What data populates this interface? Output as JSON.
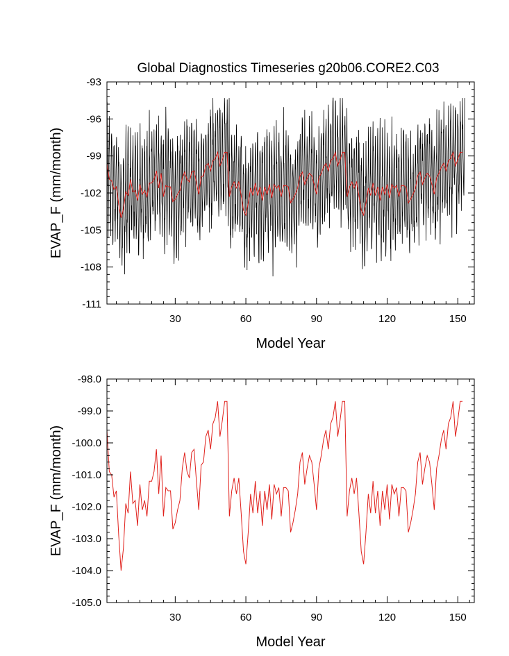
{
  "chart_data": [
    {
      "type": "line",
      "title": "Global Diagnostics Timeseries g20b06.CORE2.C03",
      "xlabel": "Model Year",
      "ylabel": "EVAP_F (mm/month)",
      "xlim": [
        1,
        157
      ],
      "ylim": [
        -111,
        -93
      ],
      "xticks": [
        30,
        60,
        90,
        120,
        150
      ],
      "yticks": [
        -111,
        -108,
        -105,
        -102,
        -99,
        -96,
        -93
      ],
      "ytick_labels": [
        "-111",
        "-108",
        "-105",
        "-102",
        "-99",
        "-96",
        "-93"
      ],
      "grid": false,
      "series": [
        {
          "kind": "monthly",
          "color": "#000000",
          "note_desc": "monthly values oscillating around the annual mean with seasonal amplitude ~3-5 mm/month",
          "extremes": {
            "min": -109,
            "max": -94.3
          }
        },
        {
          "kind": "annual",
          "color": "#e0201b",
          "ref": "annual_mean"
        }
      ]
    },
    {
      "type": "line",
      "title": "",
      "xlabel": "Model Year",
      "ylabel": "EVAP_F (mm/month)",
      "xlim": [
        1,
        157
      ],
      "ylim": [
        -105,
        -98
      ],
      "xticks": [
        30,
        60,
        90,
        120,
        150
      ],
      "yticks": [
        -105,
        -104,
        -103,
        -102,
        -101,
        -100,
        -99,
        -98
      ],
      "ytick_labels": [
        "-105.0",
        "-104.0",
        "-103.0",
        "-102.0",
        "-101.0",
        "-100.0",
        "-99.0",
        "-98.0"
      ],
      "grid": false,
      "series": [
        {
          "kind": "annual",
          "color": "#e0201b",
          "ref": "annual_mean"
        }
      ]
    }
  ],
  "annual_mean": {
    "x_start": 1,
    "values": [
      -99.6,
      -100.9,
      -101.0,
      -101.7,
      -101.5,
      -102.9,
      -104.0,
      -103.3,
      -101.9,
      -102.2,
      -100.9,
      -101.9,
      -101.8,
      -102.6,
      -101.3,
      -102.1,
      -101.8,
      -102.3,
      -101.2,
      -101.2,
      -100.9,
      -100.2,
      -101.6,
      -100.4,
      -102.3,
      -101.4,
      -101.5,
      -101.5,
      -102.7,
      -102.5,
      -102.1,
      -101.8,
      -100.8,
      -100.3,
      -100.9,
      -101.1,
      -100.3,
      -100.2,
      -101.2,
      -102.1,
      -100.7,
      -100.6,
      -99.8,
      -99.6,
      -100.2,
      -99.4,
      -99.2,
      -98.7,
      -99.8,
      -99.3,
      -98.7,
      -98.7,
      -102.3,
      -101.5,
      -101.1,
      -101.6,
      -101.1,
      -102.2,
      -103.4,
      -103.8,
      -102.8,
      -101.6,
      -102.2,
      -101.2,
      -102.2,
      -101.5,
      -102.6,
      -101.5,
      -102.1,
      -101.3,
      -102.4,
      -101.3,
      -101.6,
      -101.4,
      -102.3,
      -101.4,
      -101.4,
      -101.5,
      -102.8,
      -102.5,
      -102.1,
      -101.6,
      -100.6,
      -100.3,
      -101.3,
      -100.8,
      -100.4,
      -100.6,
      -101.3,
      -102.1,
      -100.8,
      -100.4,
      -99.9,
      -99.6,
      -100.2,
      -99.4,
      -99.2,
      -98.7,
      -99.8,
      -99.3,
      -98.7,
      -98.7,
      -102.3,
      -101.5,
      -101.1,
      -101.6,
      -101.1,
      -102.2,
      -103.4,
      -103.8,
      -102.8,
      -101.6,
      -102.2,
      -101.2,
      -102.2,
      -101.5,
      -102.6,
      -101.5,
      -102.1,
      -101.3,
      -102.4,
      -101.3,
      -101.6,
      -101.4,
      -102.3,
      -101.4,
      -101.4,
      -101.5,
      -102.8,
      -102.5,
      -102.1,
      -101.6,
      -100.6,
      -100.3,
      -101.3,
      -100.8,
      -100.4,
      -100.6,
      -101.3,
      -102.1,
      -100.8,
      -100.4,
      -99.9,
      -99.6,
      -100.2,
      -99.4,
      -99.2,
      -98.7,
      -99.8,
      -99.3,
      -98.7,
      -98.7
    ]
  }
}
